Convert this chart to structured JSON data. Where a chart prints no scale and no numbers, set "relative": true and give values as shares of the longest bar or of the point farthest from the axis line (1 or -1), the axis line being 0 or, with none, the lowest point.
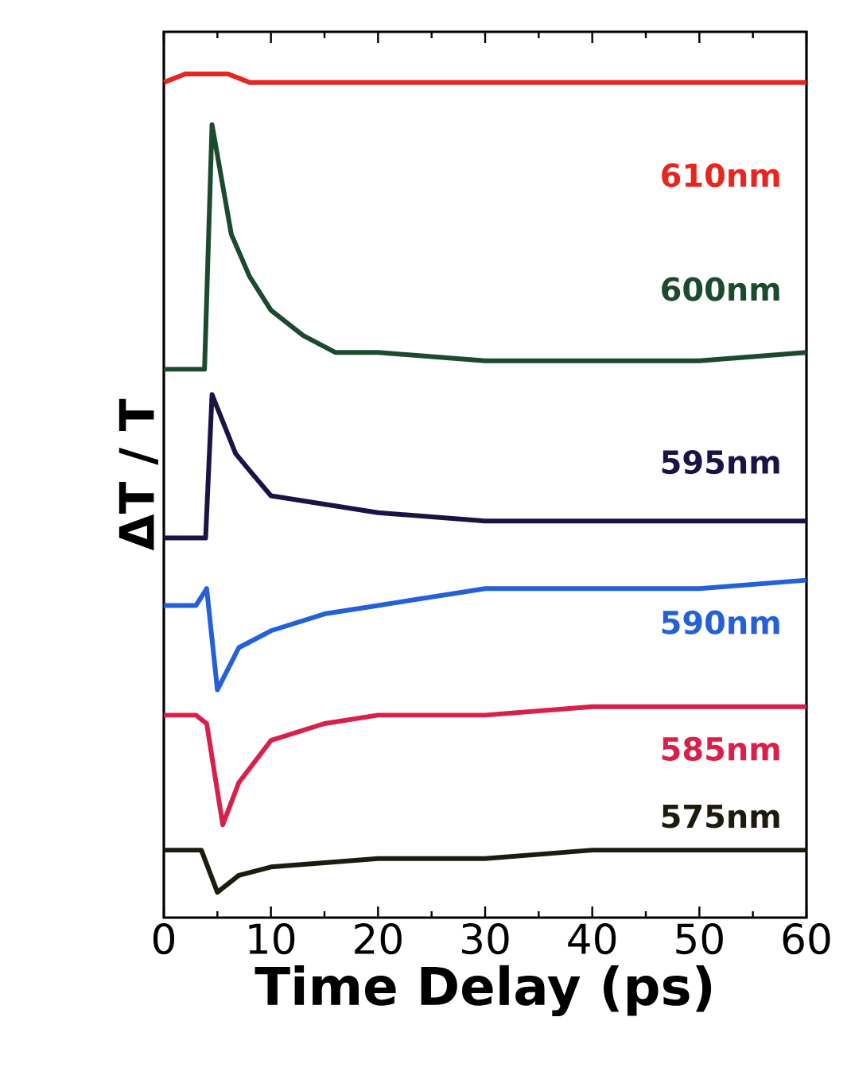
{
  "chart_data": {
    "type": "line",
    "xlabel": "Time Delay (ps)",
    "ylabel": "ΔT / T",
    "relative": true,
    "xlim": [
      0,
      60
    ],
    "xticks": [
      0,
      10,
      20,
      30,
      40,
      50,
      60
    ],
    "tick_labels": "x",
    "grid": false,
    "legend": false,
    "marker": "none",
    "line_style": "solid",
    "series": [
      {
        "name": "610nm",
        "color": "#e8251f",
        "x": [
          0,
          2,
          4,
          6,
          8,
          10,
          15,
          20,
          25,
          30,
          35,
          40,
          45,
          50,
          55,
          60
        ],
        "values": [
          0.99,
          1.0,
          1.0,
          1.0,
          0.99,
          0.99,
          0.99,
          0.99,
          0.99,
          0.99,
          0.99,
          0.99,
          0.99,
          0.99,
          0.99,
          0.99
        ]
      },
      {
        "name": "600nm",
        "color": "#1c4a2e",
        "x": [
          0,
          3.8,
          4.5,
          6.3,
          8,
          10,
          13,
          16,
          20,
          30,
          40,
          50,
          60
        ],
        "values": [
          0.65,
          0.65,
          0.94,
          0.81,
          0.76,
          0.72,
          0.69,
          0.67,
          0.67,
          0.66,
          0.66,
          0.66,
          0.67
        ]
      },
      {
        "name": "595nm",
        "color": "#1a1446",
        "x": [
          0,
          3.9,
          4.5,
          6.7,
          8,
          10,
          15,
          20,
          30,
          40,
          50,
          60
        ],
        "values": [
          0.45,
          0.45,
          0.62,
          0.55,
          0.53,
          0.5,
          0.49,
          0.48,
          0.47,
          0.47,
          0.47,
          0.47
        ]
      },
      {
        "name": "590nm",
        "color": "#2461d8",
        "x": [
          0,
          3,
          4,
          5,
          7,
          10,
          15,
          20,
          30,
          40,
          50,
          60
        ],
        "values": [
          0.37,
          0.37,
          0.39,
          0.27,
          0.32,
          0.34,
          0.36,
          0.37,
          0.39,
          0.39,
          0.39,
          0.4
        ]
      },
      {
        "name": "585nm",
        "color": "#d8204a",
        "x": [
          0,
          3,
          4,
          5.5,
          7,
          10,
          15,
          20,
          30,
          40,
          50,
          60
        ],
        "values": [
          0.24,
          0.24,
          0.23,
          0.11,
          0.16,
          0.21,
          0.23,
          0.24,
          0.24,
          0.25,
          0.25,
          0.25
        ]
      },
      {
        "name": "575nm",
        "color": "#1d1b0e",
        "x": [
          0,
          3.5,
          5,
          7,
          10,
          20,
          30,
          40,
          50,
          60
        ],
        "values": [
          0.08,
          0.08,
          0.03,
          0.05,
          0.06,
          0.07,
          0.07,
          0.08,
          0.08,
          0.08
        ]
      }
    ]
  }
}
